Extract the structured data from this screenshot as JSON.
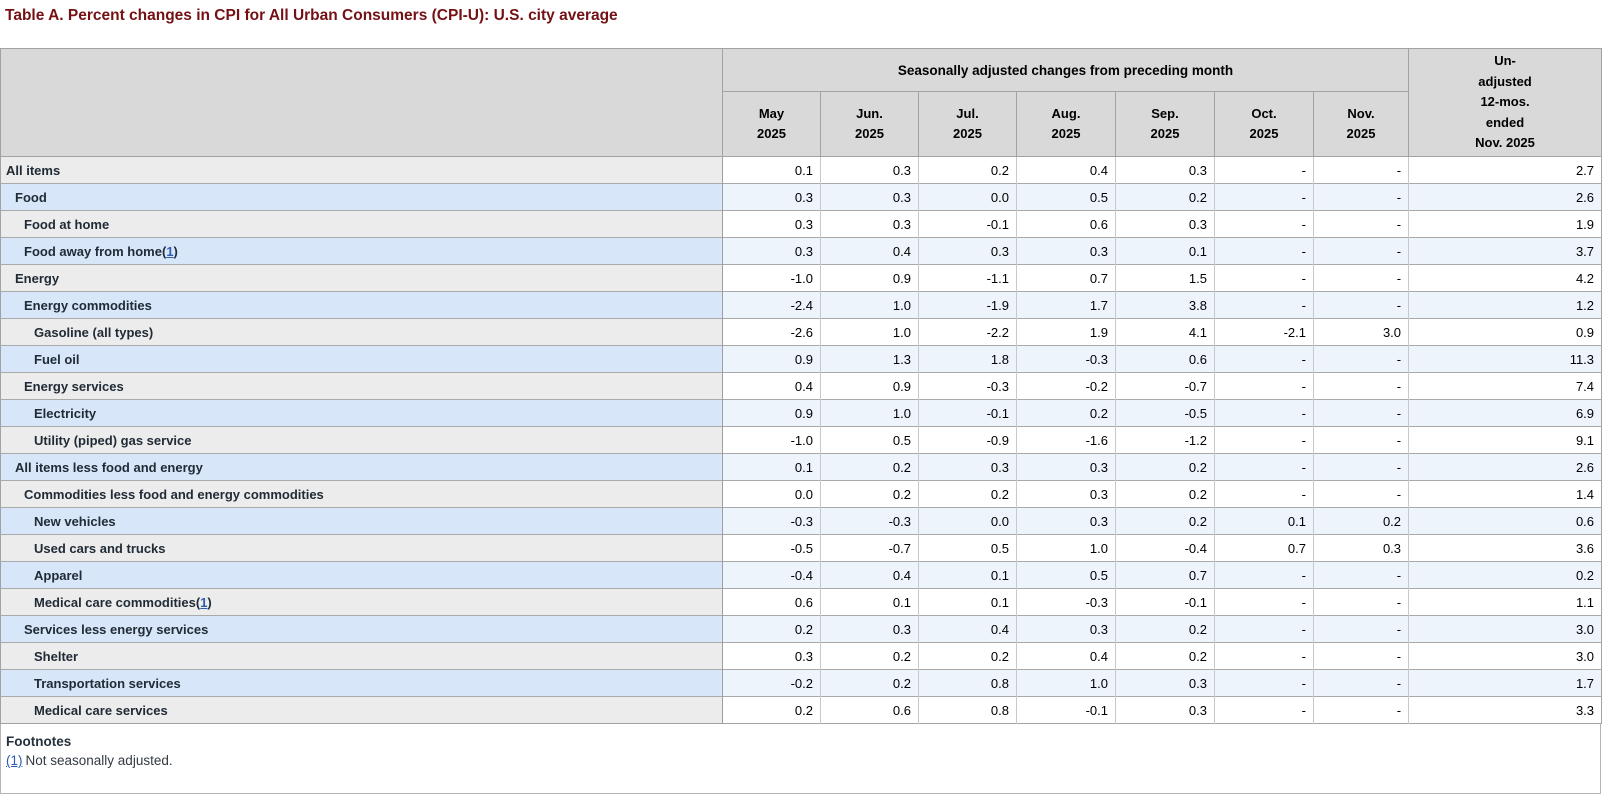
{
  "title": "Table A. Percent changes in CPI for All Urban Consumers (CPI-U): U.S. city average",
  "header": {
    "group_label": "Seasonally adjusted changes from preceding month",
    "months": [
      "May\n2025",
      "Jun.\n2025",
      "Jul.\n2025",
      "Aug.\n2025",
      "Sep.\n2025",
      "Oct.\n2025",
      "Nov.\n2025"
    ],
    "last_col": "Un-\nadjusted\n12-mos.\nended\nNov. 2025"
  },
  "rows": [
    {
      "label": "All items",
      "indent": 0,
      "footnote": null,
      "values": [
        "0.1",
        "0.3",
        "0.2",
        "0.4",
        "0.3",
        "-",
        "-",
        "2.7"
      ]
    },
    {
      "label": "Food",
      "indent": 1,
      "footnote": null,
      "values": [
        "0.3",
        "0.3",
        "0.0",
        "0.5",
        "0.2",
        "-",
        "-",
        "2.6"
      ]
    },
    {
      "label": "Food at home",
      "indent": 2,
      "footnote": null,
      "values": [
        "0.3",
        "0.3",
        "-0.1",
        "0.6",
        "0.3",
        "-",
        "-",
        "1.9"
      ]
    },
    {
      "label": "Food away from home",
      "indent": 2,
      "footnote": "1",
      "values": [
        "0.3",
        "0.4",
        "0.3",
        "0.3",
        "0.1",
        "-",
        "-",
        "3.7"
      ]
    },
    {
      "label": "Energy",
      "indent": 1,
      "footnote": null,
      "values": [
        "-1.0",
        "0.9",
        "-1.1",
        "0.7",
        "1.5",
        "-",
        "-",
        "4.2"
      ]
    },
    {
      "label": "Energy commodities",
      "indent": 2,
      "footnote": null,
      "values": [
        "-2.4",
        "1.0",
        "-1.9",
        "1.7",
        "3.8",
        "-",
        "-",
        "1.2"
      ]
    },
    {
      "label": "Gasoline (all types)",
      "indent": 3,
      "footnote": null,
      "values": [
        "-2.6",
        "1.0",
        "-2.2",
        "1.9",
        "4.1",
        "-2.1",
        "3.0",
        "0.9"
      ]
    },
    {
      "label": "Fuel oil",
      "indent": 3,
      "footnote": null,
      "values": [
        "0.9",
        "1.3",
        "1.8",
        "-0.3",
        "0.6",
        "-",
        "-",
        "11.3"
      ]
    },
    {
      "label": "Energy services",
      "indent": 2,
      "footnote": null,
      "values": [
        "0.4",
        "0.9",
        "-0.3",
        "-0.2",
        "-0.7",
        "-",
        "-",
        "7.4"
      ]
    },
    {
      "label": "Electricity",
      "indent": 3,
      "footnote": null,
      "values": [
        "0.9",
        "1.0",
        "-0.1",
        "0.2",
        "-0.5",
        "-",
        "-",
        "6.9"
      ]
    },
    {
      "label": "Utility (piped) gas service",
      "indent": 3,
      "footnote": null,
      "values": [
        "-1.0",
        "0.5",
        "-0.9",
        "-1.6",
        "-1.2",
        "-",
        "-",
        "9.1"
      ]
    },
    {
      "label": "All items less food and energy",
      "indent": 1,
      "footnote": null,
      "values": [
        "0.1",
        "0.2",
        "0.3",
        "0.3",
        "0.2",
        "-",
        "-",
        "2.6"
      ]
    },
    {
      "label": "Commodities less food and energy commodities",
      "indent": 2,
      "footnote": null,
      "values": [
        "0.0",
        "0.2",
        "0.2",
        "0.3",
        "0.2",
        "-",
        "-",
        "1.4"
      ]
    },
    {
      "label": "New vehicles",
      "indent": 3,
      "footnote": null,
      "values": [
        "-0.3",
        "-0.3",
        "0.0",
        "0.3",
        "0.2",
        "0.1",
        "0.2",
        "0.6"
      ]
    },
    {
      "label": "Used cars and trucks",
      "indent": 3,
      "footnote": null,
      "values": [
        "-0.5",
        "-0.7",
        "0.5",
        "1.0",
        "-0.4",
        "0.7",
        "0.3",
        "3.6"
      ]
    },
    {
      "label": "Apparel",
      "indent": 3,
      "footnote": null,
      "values": [
        "-0.4",
        "0.4",
        "0.1",
        "0.5",
        "0.7",
        "-",
        "-",
        "0.2"
      ]
    },
    {
      "label": "Medical care commodities",
      "indent": 3,
      "footnote": "1",
      "values": [
        "0.6",
        "0.1",
        "0.1",
        "-0.3",
        "-0.1",
        "-",
        "-",
        "1.1"
      ]
    },
    {
      "label": "Services less energy services",
      "indent": 2,
      "footnote": null,
      "values": [
        "0.2",
        "0.3",
        "0.4",
        "0.3",
        "0.2",
        "-",
        "-",
        "3.0"
      ]
    },
    {
      "label": "Shelter",
      "indent": 3,
      "footnote": null,
      "values": [
        "0.3",
        "0.2",
        "0.2",
        "0.4",
        "0.2",
        "-",
        "-",
        "3.0"
      ]
    },
    {
      "label": "Transportation services",
      "indent": 3,
      "footnote": null,
      "values": [
        "-0.2",
        "0.2",
        "0.8",
        "1.0",
        "0.3",
        "-",
        "-",
        "1.7"
      ]
    },
    {
      "label": "Medical care services",
      "indent": 3,
      "footnote": null,
      "values": [
        "0.2",
        "0.6",
        "0.8",
        "-0.1",
        "0.3",
        "-",
        "-",
        "3.3"
      ]
    }
  ],
  "footnotes": {
    "heading": "Footnotes",
    "items": [
      {
        "marker": "(1)",
        "text": "Not seasonally adjusted."
      }
    ]
  },
  "colors": {
    "title": "#741114",
    "header_bg": "#d9d9d9",
    "row_gray": "#ececec",
    "row_blue": "#d7e7f9",
    "cell_white": "#ffffff",
    "cell_blue": "#edf4fc",
    "label_text": "#212b36",
    "link": "#2a5db0",
    "border": "#a9a9a9"
  }
}
